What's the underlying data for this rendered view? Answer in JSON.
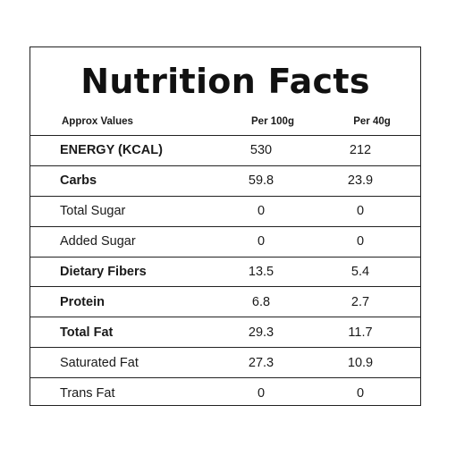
{
  "title": "Nutrition Facts",
  "columns": {
    "label": "Approx Values",
    "per_100g": "Per 100g",
    "per_40g": "Per 40g"
  },
  "rows": [
    {
      "name": "ENERGY (KCAL)",
      "per_100g": "530",
      "per_40g": "212",
      "bold": true
    },
    {
      "name": "Carbs",
      "per_100g": "59.8",
      "per_40g": "23.9",
      "bold": true
    },
    {
      "name": "Total Sugar",
      "per_100g": "0",
      "per_40g": "0",
      "bold": false
    },
    {
      "name": "Added Sugar",
      "per_100g": "0",
      "per_40g": "0",
      "bold": false
    },
    {
      "name": "Dietary Fibers",
      "per_100g": "13.5",
      "per_40g": "5.4",
      "bold": true
    },
    {
      "name": "Protein",
      "per_100g": "6.8",
      "per_40g": "2.7",
      "bold": true
    },
    {
      "name": "Total Fat",
      "per_100g": "29.3",
      "per_40g": "11.7",
      "bold": true
    },
    {
      "name": "Saturated Fat",
      "per_100g": "27.3",
      "per_40g": "10.9",
      "bold": false
    },
    {
      "name": "Trans Fat",
      "per_100g": "0",
      "per_40g": "0",
      "bold": false
    }
  ]
}
